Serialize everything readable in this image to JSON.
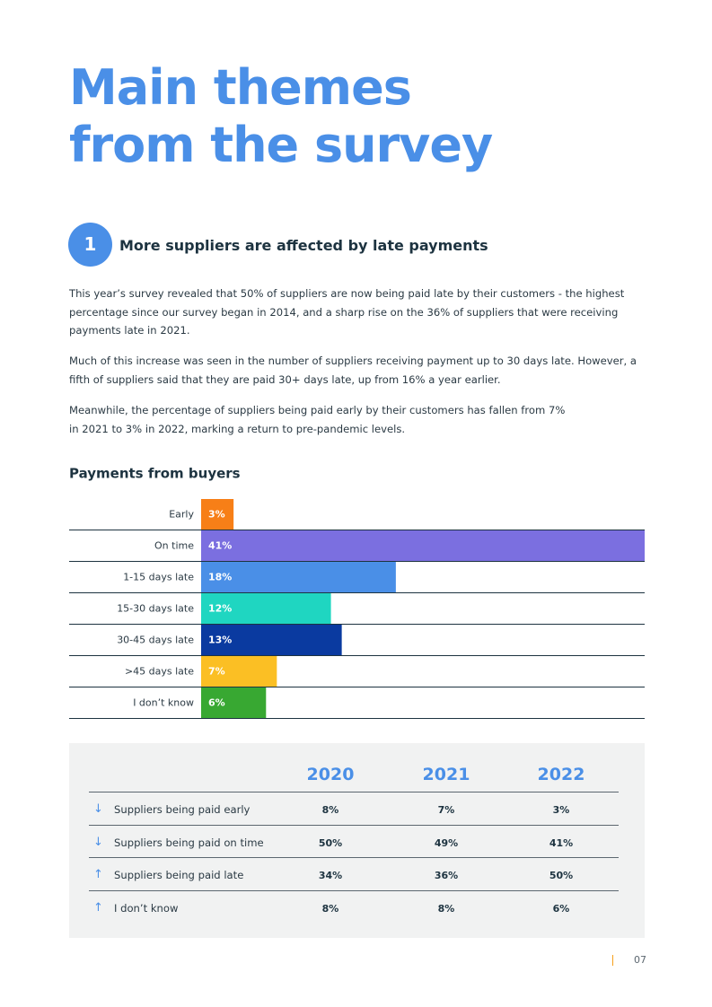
{
  "header": {
    "title_line1": "Main themes",
    "title_line2": "from the survey"
  },
  "section": {
    "number": "1",
    "heading": "More suppliers are affected by late payments",
    "paragraphs": [
      "This year’s survey revealed that 50% of suppliers are now being paid late by their customers - the highest percentage since our survey began in 2014, and a sharp rise on the 36% of suppliers that were receiving payments late in 2021.",
      "Much of this increase was seen in the number of suppliers receiving payment up to 30 days late. However, a fifth of suppliers said that they are paid 30+ days late, up from 16% a year earlier.",
      "Meanwhile, the percentage of suppliers being paid early by their customers has fallen from 7% in 2021 to 3% in 2022, marking a return to pre-pandemic levels."
    ]
  },
  "chart_data": {
    "type": "bar",
    "orientation": "horizontal",
    "title": "Payments from buyers",
    "categories": [
      "Early",
      "On time",
      "1-15 days late",
      "15-30 days late",
      "30-45 days late",
      ">45 days late",
      "I don’t know"
    ],
    "values": [
      3,
      41,
      18,
      12,
      13,
      7,
      6
    ],
    "value_labels": [
      "3%",
      "41%",
      "18%",
      "12%",
      "13%",
      "7%",
      "6%"
    ],
    "colors": [
      "#f77f17",
      "#7b6fe0",
      "#4a8fe7",
      "#1fd6c1",
      "#0a3aa0",
      "#fbbf24",
      "#38a832"
    ]
  },
  "table": {
    "columns": [
      "2020",
      "2021",
      "2022"
    ],
    "rows": [
      [
        "Suppliers being paid early",
        "8%",
        "7%",
        "3%"
      ],
      [
        "Suppliers being paid on time",
        "50%",
        "49%",
        "41%"
      ],
      [
        "Suppliers being paid late",
        "34%",
        "36%",
        "50%"
      ],
      [
        "I don’t know",
        "8%",
        "8%",
        "6%"
      ]
    ]
  },
  "footer": {
    "page": "07"
  }
}
